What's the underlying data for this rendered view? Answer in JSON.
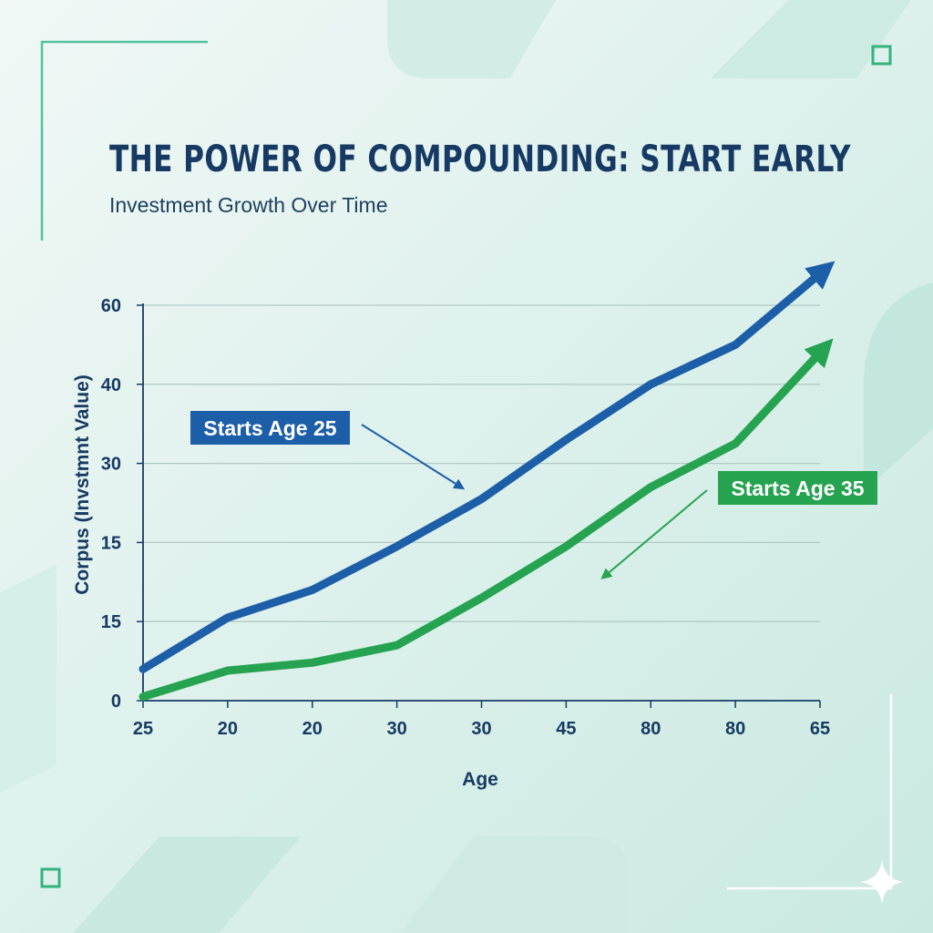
{
  "colors": {
    "background": "#e8f4f1",
    "accent_frame": "#3fbf96",
    "title": "#163a63",
    "series_age25": "#1d5ea8",
    "series_age35": "#25a350"
  },
  "chart_data": {
    "type": "line",
    "title": "THE POWER OF COMPOUNDING: START EARLY",
    "subtitle": "Investment Growth Over Time",
    "xlabel": "Age",
    "ylabel": "Corpus (Invstmnt Value)",
    "x_tick_labels": [
      "25",
      "20",
      "20",
      "30",
      "30",
      "45",
      "80",
      "80",
      "65"
    ],
    "y_tick_labels": [
      "0",
      "15",
      "15",
      "30",
      "40",
      "60"
    ],
    "grid": true,
    "legend": "none",
    "series": [
      {
        "name": "Starts Age 25",
        "color": "#1d5ea8",
        "points": [
          [
            0,
            0.4
          ],
          [
            1,
            1.05
          ],
          [
            2,
            1.4
          ],
          [
            3,
            1.95
          ],
          [
            4,
            2.55
          ],
          [
            5,
            3.3
          ],
          [
            6,
            4.0
          ],
          [
            7,
            4.5
          ],
          [
            8,
            5.4
          ]
        ]
      },
      {
        "name": "Starts Age 35",
        "color": "#25a350",
        "points": [
          [
            0,
            0.05
          ],
          [
            1,
            0.38
          ],
          [
            2,
            0.48
          ],
          [
            3,
            0.7
          ],
          [
            4,
            1.3
          ],
          [
            5,
            1.95
          ],
          [
            6,
            2.7
          ],
          [
            7,
            3.25
          ],
          [
            8,
            4.4
          ]
        ]
      }
    ]
  }
}
